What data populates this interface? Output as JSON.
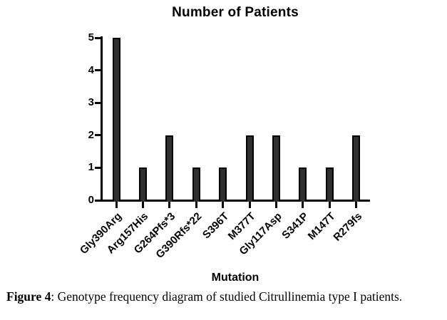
{
  "figure": {
    "caption_bold": "Figure 4",
    "caption_rest": ": Genotype frequency diagram of studied Citrullinemia type I patients."
  },
  "chart_data": {
    "type": "bar",
    "title": "Number of Patients",
    "xlabel": "Mutation",
    "ylabel": "",
    "categories": [
      "Gly390Arg",
      "Arg157His",
      "G264Pfs*3",
      "G390Rfs*22",
      "S396T",
      "M377T",
      "Gly117Asp",
      "S341P",
      "M147T",
      "R279fs"
    ],
    "values": [
      5,
      1,
      2,
      1,
      1,
      2,
      2,
      1,
      1,
      2
    ],
    "ylim": [
      0,
      5
    ],
    "yticks": [
      0,
      1,
      2,
      3,
      4,
      5
    ],
    "grid": false,
    "legend": "none",
    "bar_color": "#2f2f2f",
    "bar_border_color": "#000000",
    "axis_color": "#000000",
    "text_color": "#000000"
  }
}
